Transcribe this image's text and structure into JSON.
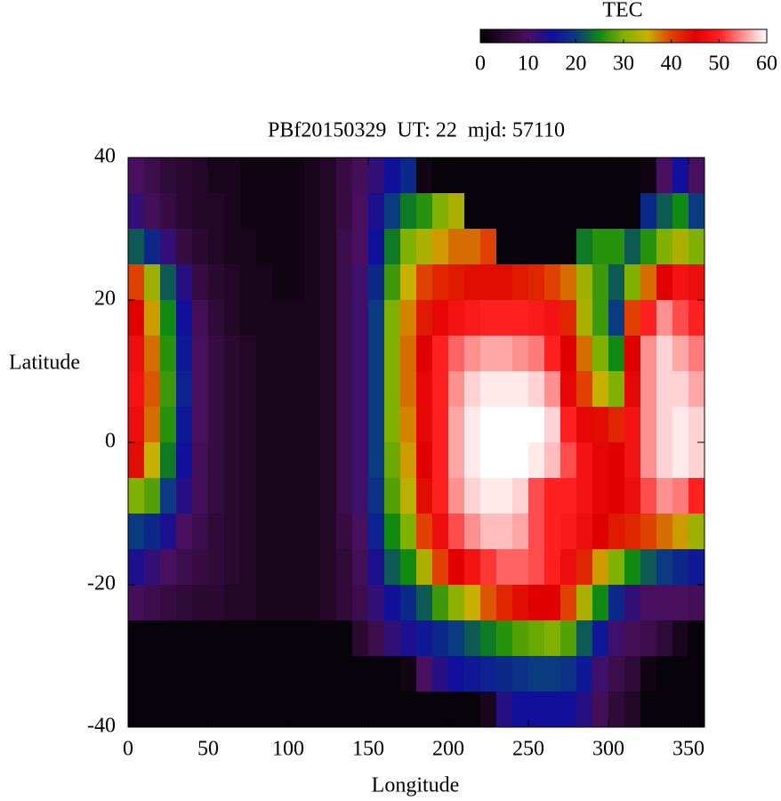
{
  "chart_data": {
    "type": "heatmap",
    "title": "PBf20150329  UT: 22  mjd: 57110",
    "x_label": "Longitude",
    "y_label": "Latitude",
    "colorbar_label": "TEC",
    "x": [
      5,
      15,
      25,
      35,
      45,
      55,
      65,
      75,
      85,
      95,
      105,
      115,
      125,
      135,
      145,
      155,
      165,
      175,
      185,
      195,
      205,
      215,
      225,
      235,
      245,
      255,
      265,
      275,
      285,
      295,
      305,
      315,
      325,
      335,
      345,
      355
    ],
    "y": [
      37.5,
      32.5,
      27.5,
      22.5,
      17.5,
      12.5,
      7.5,
      2.5,
      -2.5,
      -7.5,
      -12.5,
      -17.5,
      -22.5,
      -27.5,
      -32.5,
      -37.5
    ],
    "z": [
      [
        10,
        8,
        6,
        5,
        4,
        3,
        3,
        2,
        2,
        2,
        2,
        3,
        4,
        7,
        9,
        12,
        15,
        18,
        2,
        1,
        1,
        1,
        1,
        1,
        1,
        1,
        1,
        1,
        1,
        1,
        1,
        1,
        2,
        10,
        15,
        10
      ],
      [
        12,
        9,
        7,
        5,
        4,
        4,
        3,
        2,
        2,
        2,
        2,
        3,
        4,
        7,
        10,
        14,
        20,
        24,
        26,
        30,
        33,
        1,
        1,
        1,
        1,
        1,
        1,
        1,
        1,
        1,
        1,
        1,
        18,
        22,
        25,
        20
      ],
      [
        22,
        18,
        12,
        7,
        5,
        4,
        3,
        3,
        2,
        2,
        2,
        3,
        4,
        8,
        10,
        15,
        24,
        30,
        33,
        36,
        38,
        38,
        40,
        1,
        1,
        1,
        1,
        1,
        24,
        26,
        26,
        22,
        26,
        30,
        33,
        30
      ],
      [
        40,
        32,
        22,
        13,
        7,
        5,
        4,
        3,
        3,
        2,
        2,
        3,
        4,
        8,
        11,
        18,
        27,
        35,
        40,
        42,
        43,
        44,
        44,
        44,
        43,
        42,
        40,
        38,
        32,
        27,
        22,
        30,
        38,
        45,
        48,
        47
      ],
      [
        45,
        36,
        25,
        15,
        9,
        6,
        4,
        3,
        3,
        3,
        3,
        3,
        4,
        8,
        11,
        20,
        30,
        37,
        43,
        46,
        48,
        49,
        50,
        50,
        50,
        49,
        48,
        42,
        33,
        27,
        20,
        40,
        50,
        55,
        52,
        50
      ],
      [
        47,
        38,
        26,
        16,
        10,
        7,
        5,
        4,
        3,
        3,
        3,
        3,
        4,
        8,
        11,
        20,
        30,
        38,
        45,
        50,
        53,
        55,
        56,
        56,
        55,
        54,
        50,
        45,
        38,
        30,
        25,
        45,
        55,
        58,
        56,
        54
      ],
      [
        48,
        39,
        27,
        17,
        10,
        7,
        5,
        4,
        3,
        3,
        3,
        3,
        4,
        8,
        11,
        20,
        30,
        38,
        46,
        50,
        55,
        58,
        59,
        59,
        59,
        58,
        55,
        46,
        40,
        35,
        30,
        46,
        55,
        58,
        58,
        56
      ],
      [
        47,
        38,
        26,
        16,
        10,
        7,
        5,
        4,
        3,
        3,
        3,
        3,
        4,
        8,
        11,
        20,
        30,
        37,
        46,
        50,
        56,
        59,
        60,
        60,
        60,
        60,
        58,
        50,
        46,
        44,
        42,
        48,
        55,
        58,
        59,
        58
      ],
      [
        44,
        35,
        24,
        15,
        9,
        7,
        5,
        4,
        3,
        3,
        3,
        3,
        4,
        8,
        11,
        20,
        29,
        36,
        45,
        50,
        56,
        59,
        60,
        60,
        60,
        59,
        57,
        52,
        48,
        46,
        45,
        48,
        55,
        58,
        59,
        58
      ],
      [
        30,
        28,
        20,
        13,
        9,
        7,
        5,
        4,
        3,
        3,
        3,
        3,
        4,
        8,
        11,
        19,
        28,
        34,
        44,
        50,
        55,
        58,
        59,
        59,
        58,
        52,
        50,
        50,
        48,
        46,
        45,
        47,
        52,
        55,
        54,
        50
      ],
      [
        20,
        18,
        14,
        10,
        8,
        6,
        5,
        4,
        3,
        3,
        3,
        3,
        4,
        7,
        10,
        17,
        25,
        30,
        40,
        47,
        52,
        55,
        57,
        57,
        56,
        52,
        50,
        49,
        47,
        45,
        43,
        42,
        40,
        38,
        36,
        32
      ],
      [
        14,
        12,
        10,
        8,
        7,
        6,
        5,
        4,
        3,
        3,
        3,
        3,
        4,
        6,
        9,
        14,
        22,
        25,
        33,
        40,
        45,
        48,
        51,
        53,
        53,
        52,
        50,
        47,
        42,
        36,
        30,
        25,
        22,
        20,
        18,
        16
      ],
      [
        9,
        8,
        7,
        6,
        5,
        5,
        4,
        4,
        3,
        3,
        3,
        3,
        4,
        6,
        8,
        12,
        15,
        18,
        22,
        27,
        31,
        35,
        39,
        42,
        44,
        45,
        45,
        40,
        33,
        25,
        18,
        12,
        10,
        10,
        10,
        9
      ],
      [
        1,
        1,
        1,
        1,
        1,
        1,
        1,
        1,
        1,
        1,
        1,
        1,
        1,
        1,
        5,
        8,
        12,
        14,
        16,
        18,
        20,
        22,
        24,
        26,
        28,
        29,
        30,
        28,
        22,
        16,
        11,
        9,
        8,
        6,
        3,
        1
      ],
      [
        1,
        1,
        1,
        1,
        1,
        1,
        1,
        1,
        1,
        1,
        1,
        1,
        1,
        1,
        1,
        1,
        1,
        2,
        10,
        13,
        15,
        16,
        17,
        18,
        19,
        20,
        20,
        19,
        16,
        11,
        8,
        6,
        2,
        1,
        1,
        1
      ],
      [
        1,
        1,
        1,
        1,
        1,
        1,
        1,
        1,
        1,
        1,
        1,
        1,
        1,
        1,
        1,
        1,
        1,
        1,
        1,
        1,
        1,
        1,
        3,
        13,
        15,
        15,
        15,
        15,
        13,
        9,
        6,
        4,
        1,
        1,
        1,
        1
      ]
    ],
    "xlim": [
      0,
      360
    ],
    "xticks": [
      0,
      50,
      100,
      150,
      200,
      250,
      300,
      350
    ],
    "ylim": [
      -40,
      40
    ],
    "yticks": [
      -40,
      -20,
      0,
      20,
      40
    ],
    "zlim": [
      0,
      60
    ],
    "colorbar_ticks": [
      0,
      10,
      20,
      30,
      40,
      50,
      60
    ],
    "colormap": [
      "#000000",
      "#2a0a30",
      "#4a1060",
      "#10109a",
      "#0a3a80",
      "#108a10",
      "#80b000",
      "#c8b000",
      "#e04000",
      "#e00000",
      "#ff2020",
      "#ff9090",
      "#ffffff"
    ]
  }
}
